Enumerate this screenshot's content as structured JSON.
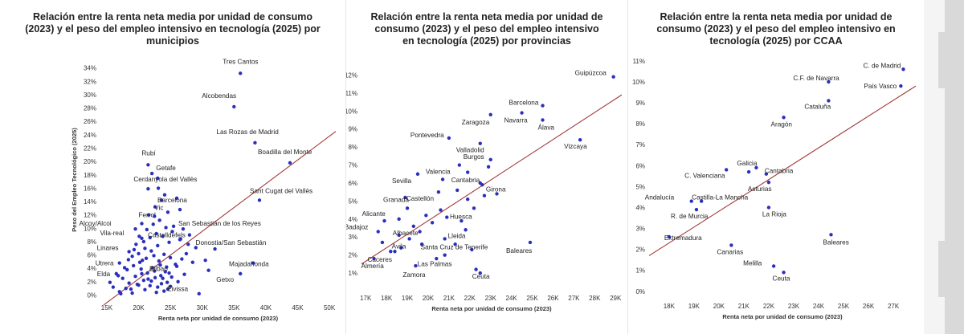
{
  "chart_data": [
    {
      "type": "scatter",
      "title": "Relación entre la renta neta media por unidad de consumo (2023) y el peso del empleo intensivo en tecnología (2025) por municipios",
      "xlabel": "Renta neta por unidad de consumo (2023)",
      "ylabel": "Peso del Empleo Tecnológico (2025)",
      "xlim": [
        14000,
        51000
      ],
      "ylim": [
        -0.3,
        34.8
      ],
      "x_ticks": [
        15000,
        20000,
        25000,
        30000,
        35000,
        40000,
        45000,
        50000
      ],
      "x_tick_labels": [
        "15K",
        "20K",
        "25K",
        "30K",
        "35K",
        "40K",
        "45K",
        "50K"
      ],
      "y_ticks": [
        0,
        2,
        4,
        6,
        8,
        10,
        12,
        14,
        16,
        18,
        20,
        22,
        24,
        26,
        28,
        30,
        32,
        34
      ],
      "y_tick_labels": [
        "0%",
        "2%",
        "4%",
        "6%",
        "8%",
        "10%",
        "12%",
        "14%",
        "16%",
        "18%",
        "20%",
        "22%",
        "24%",
        "26%",
        "28%",
        "30%",
        "32%",
        "34%"
      ],
      "trendline": [
        [
          14500,
          -1.5
        ],
        [
          51000,
          24.5
        ]
      ],
      "point_color": "#2b2fbe",
      "trend_color": "#a23a3a",
      "labeled_points": [
        {
          "label": "Tres Cantos",
          "x": 36000,
          "y": 33.2
        },
        {
          "label": "Alcobendas",
          "x": 35000,
          "y": 28.2
        },
        {
          "label": "Las Rozas de Madrid",
          "x": 38300,
          "y": 22.8
        },
        {
          "label": "Boadilla del Monte",
          "x": 43800,
          "y": 19.8
        },
        {
          "label": "Rubí",
          "x": 21500,
          "y": 19.5
        },
        {
          "label": "Getafe",
          "x": 23000,
          "y": 17.5
        },
        {
          "label": "Cerdanyola del Vallès",
          "x": 21500,
          "y": 15.9
        },
        {
          "label": "Sant Cugat del Vallès",
          "x": 39000,
          "y": 14.2
        },
        {
          "label": "Ferrol",
          "x": 20500,
          "y": 10.7
        },
        {
          "label": "Vic",
          "x": 22500,
          "y": 11.8
        },
        {
          "label": "Barcelona",
          "x": 26500,
          "y": 12.8
        },
        {
          "label": "Alcoy/Alcoi",
          "x": 19500,
          "y": 9.9
        },
        {
          "label": "San Sebastián de los Reyes",
          "x": 27000,
          "y": 9.9
        },
        {
          "label": "Vila-real",
          "x": 20500,
          "y": 8.5
        },
        {
          "label": "Castelldefels",
          "x": 26500,
          "y": 8.3
        },
        {
          "label": "Linares",
          "x": 18500,
          "y": 6.5
        },
        {
          "label": "Donostia/San Sebastián",
          "x": 32000,
          "y": 6.9
        },
        {
          "label": "Utrera",
          "x": 17000,
          "y": 4.8
        },
        {
          "label": "Bilbao",
          "x": 26000,
          "y": 4.3
        },
        {
          "label": "Majadahonda",
          "x": 38000,
          "y": 4.8
        },
        {
          "label": "Elda",
          "x": 16500,
          "y": 3.2
        },
        {
          "label": "Getxo",
          "x": 36000,
          "y": 3.2
        },
        {
          "label": "Eivissa",
          "x": 25000,
          "y": 1.3
        }
      ],
      "other_points": [
        [
          17000,
          0.5
        ],
        [
          18000,
          1.0
        ],
        [
          19000,
          0.3
        ],
        [
          20000,
          1.5
        ],
        [
          21000,
          0.8
        ],
        [
          22000,
          2.1
        ],
        [
          23000,
          1.2
        ],
        [
          24000,
          0.6
        ],
        [
          17500,
          2.5
        ],
        [
          18500,
          1.8
        ],
        [
          19500,
          2.8
        ],
        [
          20500,
          3.2
        ],
        [
          21500,
          2.4
        ],
        [
          22500,
          3.6
        ],
        [
          23500,
          2.9
        ],
        [
          24500,
          1.9
        ],
        [
          18200,
          3.8
        ],
        [
          19200,
          4.4
        ],
        [
          20200,
          4.9
        ],
        [
          21200,
          5.5
        ],
        [
          22200,
          4.1
        ],
        [
          23200,
          5.1
        ],
        [
          24200,
          3.5
        ],
        [
          25200,
          2.7
        ],
        [
          19000,
          5.8
        ],
        [
          20000,
          6.2
        ],
        [
          21000,
          7.0
        ],
        [
          22000,
          6.6
        ],
        [
          23000,
          7.4
        ],
        [
          24000,
          6.1
        ],
        [
          25000,
          5.6
        ],
        [
          20600,
          5.2
        ],
        [
          19600,
          7.6
        ],
        [
          20800,
          8.0
        ],
        [
          21800,
          8.6
        ],
        [
          22800,
          9.2
        ],
        [
          23800,
          8.8
        ],
        [
          24800,
          7.9
        ],
        [
          21300,
          9.8
        ],
        [
          22300,
          10.6
        ],
        [
          23300,
          11.2
        ],
        [
          24300,
          10.1
        ],
        [
          25300,
          9.5
        ],
        [
          21600,
          12.0
        ],
        [
          22600,
          13.2
        ],
        [
          24600,
          12.4
        ],
        [
          26000,
          14.5
        ],
        [
          23600,
          14.2
        ],
        [
          16000,
          1.2
        ],
        [
          15500,
          1.9
        ],
        [
          17200,
          0.2
        ],
        [
          18800,
          0.9
        ],
        [
          19800,
          1.6
        ],
        [
          20800,
          2.2
        ],
        [
          21800,
          1.4
        ],
        [
          22800,
          0.4
        ],
        [
          23800,
          2.5
        ],
        [
          24800,
          3.3
        ],
        [
          25800,
          4.6
        ],
        [
          26800,
          5.4
        ],
        [
          27500,
          6.2
        ],
        [
          28500,
          4.9
        ],
        [
          27200,
          3.1
        ],
        [
          26200,
          2.0
        ],
        [
          29500,
          0.2
        ],
        [
          30500,
          5.2
        ],
        [
          31000,
          3.7
        ],
        [
          29000,
          7.1
        ],
        [
          28000,
          9.0
        ],
        [
          25500,
          10.3
        ],
        [
          26600,
          8.4
        ],
        [
          27800,
          7.6
        ],
        [
          24100,
          15.0
        ],
        [
          23100,
          16.0
        ],
        [
          22100,
          18.2
        ],
        [
          20100,
          8.8
        ],
        [
          19300,
          6.8
        ],
        [
          18400,
          5.3
        ],
        [
          17800,
          4.1
        ],
        [
          16800,
          2.9
        ],
        [
          22400,
          5.9
        ],
        [
          23400,
          4.5
        ],
        [
          24400,
          4.2
        ],
        [
          20400,
          3.9
        ],
        [
          21400,
          3.3
        ],
        [
          22600,
          2.6
        ],
        [
          23600,
          1.7
        ],
        [
          24600,
          0.9
        ]
      ]
    },
    {
      "type": "scatter",
      "title": "Relación entre la renta neta media por unidad de consumo (2023) y el peso del empleo intensivo en tecnología (2025) por provincias",
      "xlabel": "Renta neta por unidad de consumo (2023)",
      "ylabel": "Peso del Empleo Tecnológico (2025)",
      "xlim": [
        16800,
        29300
      ],
      "ylim": [
        0.2,
        12.6
      ],
      "x_ticks": [
        17000,
        18000,
        19000,
        20000,
        21000,
        22000,
        23000,
        24000,
        25000,
        26000,
        27000,
        28000,
        29000
      ],
      "x_tick_labels": [
        "17K",
        "18K",
        "19K",
        "20K",
        "21K",
        "22K",
        "23K",
        "24K",
        "25K",
        "26K",
        "27K",
        "28K",
        "29K"
      ],
      "y_ticks": [
        1,
        2,
        3,
        4,
        5,
        6,
        7,
        8,
        9,
        10,
        11,
        12
      ],
      "y_tick_labels": [
        "1%",
        "2%",
        "3%",
        "4%",
        "5%",
        "6%",
        "7%",
        "8%",
        "9%",
        "10%",
        "11%",
        "12%"
      ],
      "trendline": [
        [
          16800,
          1.5
        ],
        [
          29300,
          10.9
        ]
      ],
      "point_color": "#2b2fbe",
      "trend_color": "#a23a3a",
      "labeled_points": [
        {
          "label": "Guipúzcoa",
          "x": 28900,
          "y": 11.9
        },
        {
          "label": "Barcelona",
          "x": 25500,
          "y": 10.3
        },
        {
          "label": "Zaragoza",
          "x": 23000,
          "y": 9.8
        },
        {
          "label": "Navarra",
          "x": 24500,
          "y": 9.9
        },
        {
          "label": "Álava",
          "x": 25500,
          "y": 9.5
        },
        {
          "label": "Vizcaya",
          "x": 27300,
          "y": 8.4
        },
        {
          "label": "Pontevedra",
          "x": 21000,
          "y": 8.5
        },
        {
          "label": "Valladolid",
          "x": 22500,
          "y": 8.2
        },
        {
          "label": "Burgos",
          "x": 23000,
          "y": 7.3
        },
        {
          "label": "Valencia",
          "x": 21500,
          "y": 7.0
        },
        {
          "label": "Sevilla",
          "x": 19500,
          "y": 6.5
        },
        {
          "label": "Cantabria",
          "x": 22500,
          "y": 6.0
        },
        {
          "label": "Castellón",
          "x": 20500,
          "y": 5.5
        },
        {
          "label": "Girona",
          "x": 22700,
          "y": 5.3
        },
        {
          "label": "Granada",
          "x": 19000,
          "y": 4.6
        },
        {
          "label": "Huesca",
          "x": 22200,
          "y": 4.6
        },
        {
          "label": "Alicante",
          "x": 18600,
          "y": 4.0
        },
        {
          "label": "Albacete",
          "x": 19300,
          "y": 3.6
        },
        {
          "label": "Lleida",
          "x": 21800,
          "y": 3.4
        },
        {
          "label": "Badajoz",
          "x": 17600,
          "y": 3.3
        },
        {
          "label": "Santa Cruz de Tenerife",
          "x": 20800,
          "y": 2.9
        },
        {
          "label": "Ávila",
          "x": 19100,
          "y": 2.9
        },
        {
          "label": "Baleares",
          "x": 24900,
          "y": 2.7
        },
        {
          "label": "Cáceres",
          "x": 18400,
          "y": 2.2
        },
        {
          "label": "Almería",
          "x": 17400,
          "y": 1.8
        },
        {
          "label": "Las Palmas",
          "x": 20800,
          "y": 2.0
        },
        {
          "label": "Zamora",
          "x": 19400,
          "y": 1.4
        },
        {
          "label": "Ceuta",
          "x": 22500,
          "y": 1.0
        }
      ],
      "other_points": [
        [
          17800,
          2.7
        ],
        [
          18200,
          2.2
        ],
        [
          18700,
          2.4
        ],
        [
          19700,
          2.6
        ],
        [
          20200,
          3.8
        ],
        [
          20900,
          4.1
        ],
        [
          21600,
          3.9
        ],
        [
          22100,
          2.3
        ],
        [
          21400,
          5.6
        ],
        [
          21900,
          5.1
        ],
        [
          22600,
          5.9
        ],
        [
          23300,
          5.4
        ],
        [
          20700,
          6.2
        ],
        [
          21900,
          6.6
        ],
        [
          22900,
          6.9
        ],
        [
          18900,
          5.2
        ],
        [
          17900,
          3.9
        ],
        [
          19900,
          4.2
        ],
        [
          20600,
          4.5
        ],
        [
          21300,
          2.6
        ],
        [
          22300,
          1.2
        ],
        [
          18600,
          3.1
        ],
        [
          19600,
          3.3
        ],
        [
          20400,
          1.8
        ]
      ]
    },
    {
      "type": "scatter",
      "title": "Relación entre la renta neta media por unidad de consumo (2023) y el peso del empleo intensivo en tecnología (2025) por CCAA",
      "xlabel": "Renta neta por unidad de consumo (2023)",
      "ylabel": "Peso del Empleo Tecnológico (2025)",
      "xlim": [
        17200,
        27900
      ],
      "ylim": [
        -0.2,
        11.3
      ],
      "x_ticks": [
        18000,
        19000,
        20000,
        21000,
        22000,
        23000,
        24000,
        25000,
        26000,
        27000
      ],
      "x_tick_labels": [
        "18K",
        "19K",
        "20K",
        "21K",
        "22K",
        "23K",
        "24K",
        "25K",
        "26K",
        "27K"
      ],
      "y_ticks": [
        0,
        1,
        2,
        3,
        4,
        5,
        6,
        7,
        8,
        9,
        10,
        11
      ],
      "y_tick_labels": [
        "0%",
        "1%",
        "2%",
        "3%",
        "4%",
        "5%",
        "6%",
        "7%",
        "8%",
        "9%",
        "10%",
        "11%"
      ],
      "trendline": [
        [
          17200,
          1.7
        ],
        [
          27900,
          9.8
        ]
      ],
      "point_color": "#2b2fbe",
      "trend_color": "#a23a3a",
      "labeled_points": [
        {
          "label": "C. de Madrid",
          "x": 27400,
          "y": 10.6
        },
        {
          "label": "C.F. de Navarra",
          "x": 24400,
          "y": 10.0
        },
        {
          "label": "País Vasco",
          "x": 27300,
          "y": 9.8
        },
        {
          "label": "Cataluña",
          "x": 24400,
          "y": 9.1
        },
        {
          "label": "Aragón",
          "x": 22600,
          "y": 8.3
        },
        {
          "label": "Galicia",
          "x": 21500,
          "y": 5.9
        },
        {
          "label": "C. Valenciana",
          "x": 20300,
          "y": 5.8
        },
        {
          "label": "Cantabria",
          "x": 21900,
          "y": 5.6
        },
        {
          "label": "Asturias",
          "x": 22000,
          "y": 5.2
        },
        {
          "label": "Andalucía",
          "x": 18900,
          "y": 4.3
        },
        {
          "label": "Castilla-La Mancha",
          "x": 19300,
          "y": 4.3
        },
        {
          "label": "R. de Murcia",
          "x": 19100,
          "y": 3.9
        },
        {
          "label": "La Rioja",
          "x": 22000,
          "y": 4.0
        },
        {
          "label": "Extremadura",
          "x": 18000,
          "y": 2.6
        },
        {
          "label": "Canarias",
          "x": 20500,
          "y": 2.2
        },
        {
          "label": "Baleares",
          "x": 24500,
          "y": 2.7
        },
        {
          "label": "Melilla",
          "x": 22200,
          "y": 1.2
        },
        {
          "label": "Ceuta",
          "x": 22600,
          "y": 0.9
        }
      ],
      "other_points": [
        [
          21200,
          5.7
        ]
      ]
    }
  ]
}
